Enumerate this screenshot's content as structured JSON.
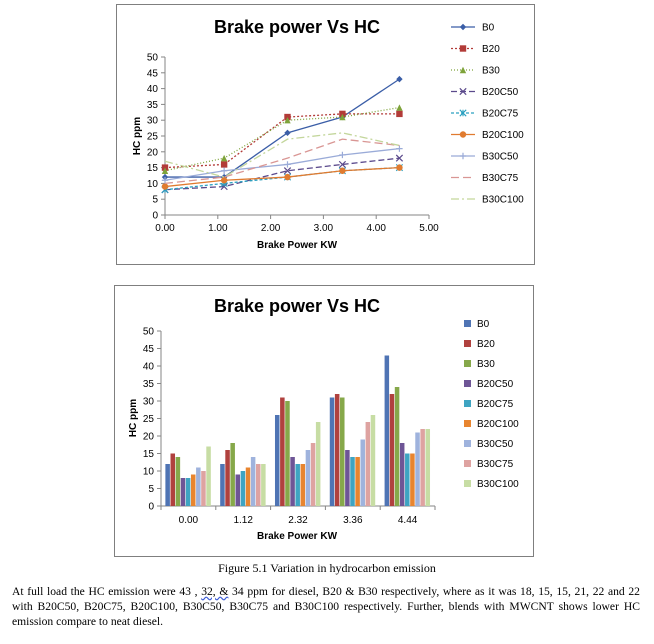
{
  "charts": [
    {
      "type": "line",
      "title": "Brake power Vs HC",
      "xlabel": "Brake Power KW",
      "ylabel": "HC ppm",
      "x": [
        0,
        1.12,
        2.32,
        3.36,
        4.44
      ],
      "xlim": [
        0,
        5
      ],
      "xticks": [
        "0.00",
        "1.00",
        "2.00",
        "3.00",
        "4.00",
        "5.00"
      ],
      "ylim": [
        0,
        50
      ],
      "yticks": [
        "0",
        "5",
        "10",
        "15",
        "20",
        "25",
        "30",
        "35",
        "40",
        "45",
        "50"
      ],
      "legend_position": "right",
      "series": [
        {
          "name": "B0",
          "values": [
            12,
            12,
            26,
            31,
            43
          ],
          "color": "#3b5ea7"
        },
        {
          "name": "B20",
          "values": [
            15,
            16,
            31,
            32,
            32
          ],
          "color": "#b23b38"
        },
        {
          "name": "B30",
          "values": [
            14,
            18,
            30,
            31,
            34
          ],
          "color": "#7ea33a"
        },
        {
          "name": "B20C50",
          "values": [
            8,
            9,
            14,
            16,
            18
          ],
          "color": "#5b4a8c"
        },
        {
          "name": "B20C75",
          "values": [
            8,
            10,
            12,
            14,
            15
          ],
          "color": "#2aa0c0"
        },
        {
          "name": "B20C100",
          "values": [
            9,
            11,
            12,
            14,
            15
          ],
          "color": "#e07b30"
        },
        {
          "name": "B30C50",
          "values": [
            11,
            14,
            16,
            19,
            21
          ],
          "color": "#9aabd8"
        },
        {
          "name": "B30C75",
          "values": [
            10,
            12,
            18,
            24,
            22
          ],
          "color": "#d99694"
        },
        {
          "name": "B30C100",
          "values": [
            17,
            12,
            24,
            26,
            22
          ],
          "color": "#c3d69b"
        }
      ]
    },
    {
      "type": "bar",
      "title": "Brake power Vs HC",
      "xlabel": "Brake Power KW",
      "ylabel": "HC ppm",
      "categories": [
        "0.00",
        "1.12",
        "2.32",
        "3.36",
        "4.44"
      ],
      "ylim": [
        0,
        50
      ],
      "yticks": [
        "0",
        "5",
        "10",
        "15",
        "20",
        "25",
        "30",
        "35",
        "40",
        "45",
        "50"
      ],
      "legend_position": "right",
      "series": [
        {
          "name": "B0",
          "values": [
            12,
            12,
            26,
            31,
            43
          ],
          "color": "#4f74b4"
        },
        {
          "name": "B20",
          "values": [
            15,
            16,
            31,
            32,
            32
          ],
          "color": "#b0413e"
        },
        {
          "name": "B30",
          "values": [
            14,
            18,
            30,
            31,
            34
          ],
          "color": "#86a84a"
        },
        {
          "name": "B20C50",
          "values": [
            8,
            9,
            14,
            16,
            18
          ],
          "color": "#6e5596"
        },
        {
          "name": "B20C75",
          "values": [
            8,
            10,
            12,
            14,
            15
          ],
          "color": "#3ea4c2"
        },
        {
          "name": "B20C100",
          "values": [
            9,
            11,
            12,
            14,
            15
          ],
          "color": "#e8852f"
        },
        {
          "name": "B30C50",
          "values": [
            11,
            14,
            16,
            19,
            21
          ],
          "color": "#9fb3dd"
        },
        {
          "name": "B30C75",
          "values": [
            10,
            12,
            18,
            24,
            22
          ],
          "color": "#dea3a1"
        },
        {
          "name": "B30C100",
          "values": [
            17,
            12,
            24,
            26,
            22
          ],
          "color": "#c7dda4"
        }
      ]
    }
  ],
  "caption": "Figure 5.1 Variation in hydrocarbon emission",
  "paragraph": {
    "part1": "At full load the HC emission were 43 , ",
    "squiggle": "32, &",
    "part2": " 34 ppm for diesel, B20 & B30 respectively, where as it was 18, 15, 15, 21, 22 and 22 with B20C50, B20C75, B20C100, B30C50, B30C75 and B30C100 respectively. Further, blends with MWCNT shows lower HC emission compare to neat diesel."
  }
}
